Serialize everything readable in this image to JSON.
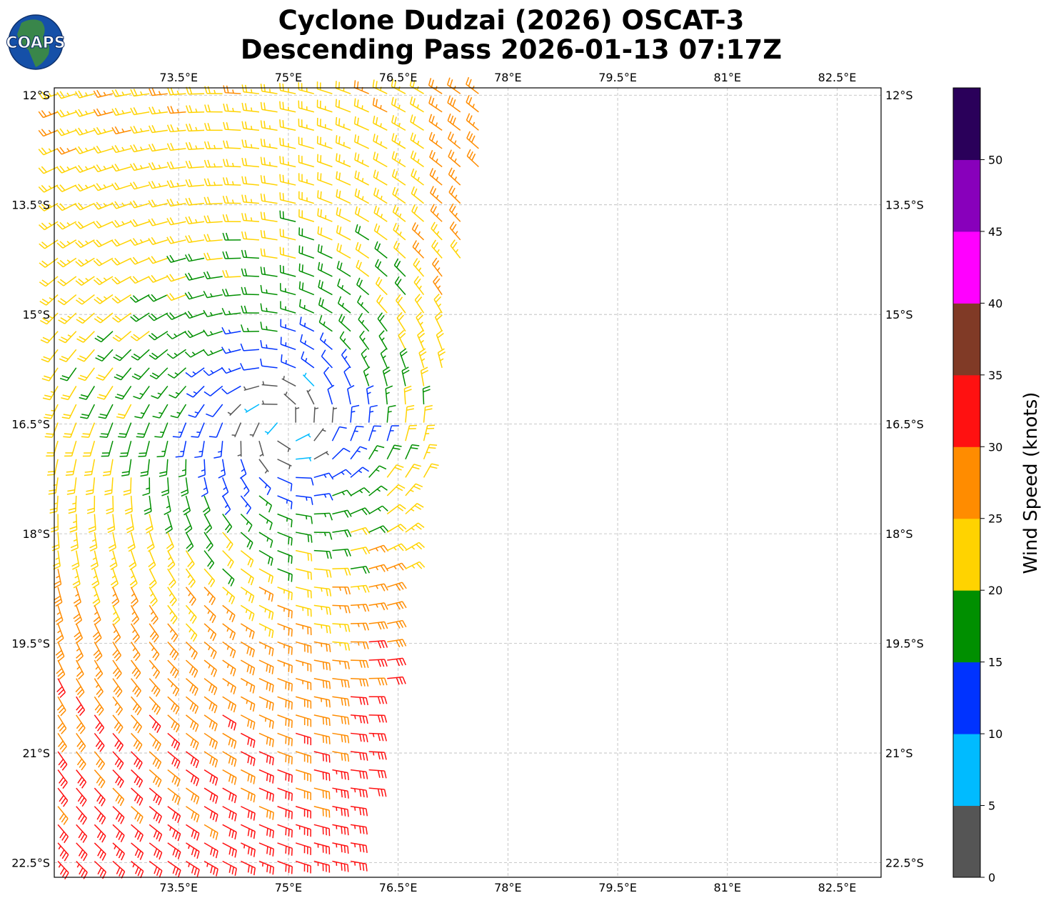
{
  "title": {
    "line1": "Cyclone Dudzai (2026) OSCAT-3",
    "line2": "Descending Pass 2026-01-13 07:17Z"
  },
  "logo": {
    "text": "COAPS",
    "icon": "globe-icon"
  },
  "map": {
    "lon_range": [
      71.8,
      83.1
    ],
    "lat_range": [
      -22.7,
      -11.9
    ],
    "lon_ticks": [
      {
        "value": 73.5,
        "label": "73.5°E"
      },
      {
        "value": 75.0,
        "label": "75°E"
      },
      {
        "value": 76.5,
        "label": "76.5°E"
      },
      {
        "value": 78.0,
        "label": "78°E"
      },
      {
        "value": 79.5,
        "label": "79.5°E"
      },
      {
        "value": 81.0,
        "label": "81°E"
      },
      {
        "value": 82.5,
        "label": "82.5°E"
      }
    ],
    "lat_ticks": [
      {
        "value": -12.0,
        "label": "12°S"
      },
      {
        "value": -13.5,
        "label": "13.5°S"
      },
      {
        "value": -15.0,
        "label": "15°S"
      },
      {
        "value": -16.5,
        "label": "16.5°S"
      },
      {
        "value": -18.0,
        "label": "18°S"
      },
      {
        "value": -19.5,
        "label": "19.5°S"
      },
      {
        "value": -21.0,
        "label": "21°S"
      },
      {
        "value": -22.5,
        "label": "22.5°S"
      }
    ],
    "grid": true
  },
  "chart_data": {
    "type": "wind-barbs",
    "center": {
      "lon": 74.9,
      "lat": -16.5
    },
    "swath": {
      "north": -11.9,
      "south": -22.7,
      "west": 71.8,
      "east_at_north": 77.8,
      "east_at_south": 75.9
    },
    "spacing_deg": 0.25
  },
  "colorbar": {
    "label": "Wind Speed (knots)",
    "ticks": [
      "0",
      "5",
      "10",
      "15",
      "20",
      "25",
      "30",
      "35",
      "40",
      "45",
      "50"
    ],
    "bins": [
      {
        "min": 0,
        "max": 5,
        "color": "#555555"
      },
      {
        "min": 5,
        "max": 10,
        "color": "#00bbff"
      },
      {
        "min": 10,
        "max": 15,
        "color": "#0033ff"
      },
      {
        "min": 15,
        "max": 20,
        "color": "#008f00"
      },
      {
        "min": 20,
        "max": 25,
        "color": "#ffd300"
      },
      {
        "min": 25,
        "max": 30,
        "color": "#ff8c00"
      },
      {
        "min": 30,
        "max": 35,
        "color": "#ff1111"
      },
      {
        "min": 35,
        "max": 40,
        "color": "#803a26"
      },
      {
        "min": 40,
        "max": 45,
        "color": "#ff00ff"
      },
      {
        "min": 45,
        "max": 50,
        "color": "#8800bb"
      },
      {
        "min": 50,
        "max": 55,
        "color": "#2a005a"
      }
    ]
  }
}
